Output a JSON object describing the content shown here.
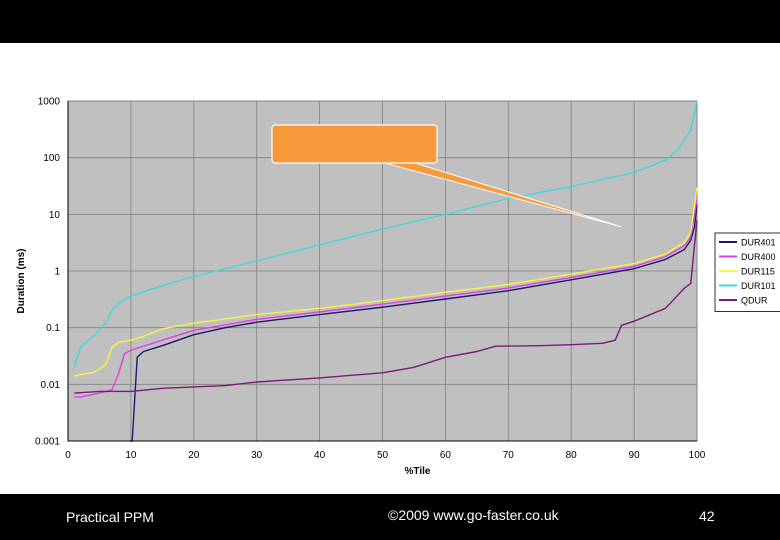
{
  "footer": {
    "left": "Practical PPM",
    "center": "©2009 www.go-faster.co.uk",
    "page_number": "42"
  },
  "chart_data": {
    "type": "line",
    "title": "",
    "xlabel": "%Tile",
    "ylabel": "Duration (ms)",
    "xlim": [
      0,
      100
    ],
    "ylim": [
      0.001,
      1000
    ],
    "yscale": "log",
    "grid": true,
    "x_ticks": [
      "0",
      "10",
      "20",
      "30",
      "40",
      "50",
      "60",
      "70",
      "80",
      "90",
      "100"
    ],
    "y_ticks": [
      "0.001",
      "0.01",
      "0.1",
      "1",
      "10",
      "100",
      "1000"
    ],
    "legend_position": "right",
    "colors": {
      "plot_background": "#c0c0c0",
      "gridline": "#808080",
      "callout_fill": "#f79a3c",
      "callout_border": "#ffffff"
    },
    "series": [
      {
        "name": "DUR401",
        "legend_label": "DUR401",
        "color": "#1a1a6e",
        "points": [
          [
            9.9,
            0.001
          ],
          [
            10.2,
            0.001
          ],
          [
            11,
            0.03
          ],
          [
            12,
            0.038
          ],
          [
            15,
            0.048
          ],
          [
            20,
            0.075
          ],
          [
            25,
            0.1
          ],
          [
            30,
            0.125
          ],
          [
            40,
            0.17
          ],
          [
            50,
            0.23
          ],
          [
            60,
            0.32
          ],
          [
            70,
            0.45
          ],
          [
            80,
            0.7
          ],
          [
            90,
            1.1
          ],
          [
            95,
            1.6
          ],
          [
            98,
            2.4
          ],
          [
            99,
            3.5
          ],
          [
            99.6,
            6
          ],
          [
            100,
            15
          ]
        ]
      },
      {
        "name": "DUR400",
        "legend_label": "DUR400",
        "color": "#e040e0",
        "points": [
          [
            1,
            0.006
          ],
          [
            2,
            0.006
          ],
          [
            5,
            0.007
          ],
          [
            7,
            0.008
          ],
          [
            8,
            0.015
          ],
          [
            9,
            0.035
          ],
          [
            10,
            0.04
          ],
          [
            15,
            0.06
          ],
          [
            20,
            0.09
          ],
          [
            30,
            0.14
          ],
          [
            40,
            0.19
          ],
          [
            50,
            0.26
          ],
          [
            60,
            0.36
          ],
          [
            70,
            0.5
          ],
          [
            80,
            0.77
          ],
          [
            90,
            1.2
          ],
          [
            95,
            1.8
          ],
          [
            98,
            2.8
          ],
          [
            99,
            4
          ],
          [
            100,
            18
          ]
        ]
      },
      {
        "name": "DUR115",
        "legend_label": "DUR115",
        "color": "#f5f542",
        "points": [
          [
            1,
            0.014
          ],
          [
            2,
            0.015
          ],
          [
            4,
            0.016
          ],
          [
            6,
            0.022
          ],
          [
            7,
            0.045
          ],
          [
            8,
            0.055
          ],
          [
            10,
            0.06
          ],
          [
            12,
            0.07
          ],
          [
            15,
            0.095
          ],
          [
            20,
            0.12
          ],
          [
            30,
            0.17
          ],
          [
            40,
            0.22
          ],
          [
            50,
            0.3
          ],
          [
            60,
            0.42
          ],
          [
            70,
            0.58
          ],
          [
            80,
            0.88
          ],
          [
            90,
            1.35
          ],
          [
            95,
            2
          ],
          [
            98,
            3.2
          ],
          [
            99,
            4.8
          ],
          [
            100,
            30
          ]
        ]
      },
      {
        "name": "DUR101",
        "legend_label": "DUR101",
        "color": "#40d8e0",
        "points": [
          [
            1,
            0.02
          ],
          [
            2,
            0.045
          ],
          [
            4,
            0.07
          ],
          [
            6,
            0.12
          ],
          [
            7,
            0.2
          ],
          [
            8,
            0.27
          ],
          [
            10,
            0.36
          ],
          [
            15,
            0.55
          ],
          [
            20,
            0.8
          ],
          [
            30,
            1.5
          ],
          [
            40,
            2.9
          ],
          [
            50,
            5.5
          ],
          [
            60,
            10
          ],
          [
            70,
            19
          ],
          [
            80,
            31
          ],
          [
            90,
            55
          ],
          [
            95,
            90
          ],
          [
            97,
            140
          ],
          [
            99,
            300
          ],
          [
            100,
            1000
          ]
        ]
      },
      {
        "name": "QDUR",
        "legend_label": "QDUR",
        "color": "#7a1a7a",
        "points": [
          [
            1,
            0.007
          ],
          [
            5,
            0.0075
          ],
          [
            10,
            0.0075
          ],
          [
            15,
            0.0085
          ],
          [
            25,
            0.0095
          ],
          [
            30,
            0.011
          ],
          [
            40,
            0.013
          ],
          [
            50,
            0.016
          ],
          [
            55,
            0.02
          ],
          [
            60,
            0.03
          ],
          [
            65,
            0.038
          ],
          [
            68,
            0.047
          ],
          [
            75,
            0.048
          ],
          [
            80,
            0.05
          ],
          [
            85,
            0.053
          ],
          [
            87,
            0.06
          ],
          [
            88,
            0.11
          ],
          [
            90,
            0.13
          ],
          [
            95,
            0.22
          ],
          [
            98,
            0.5
          ],
          [
            99,
            0.6
          ],
          [
            100,
            8
          ]
        ]
      }
    ],
    "annotations": [
      {
        "type": "callout",
        "text": "",
        "points_to": [
          88,
          6
        ]
      }
    ]
  }
}
